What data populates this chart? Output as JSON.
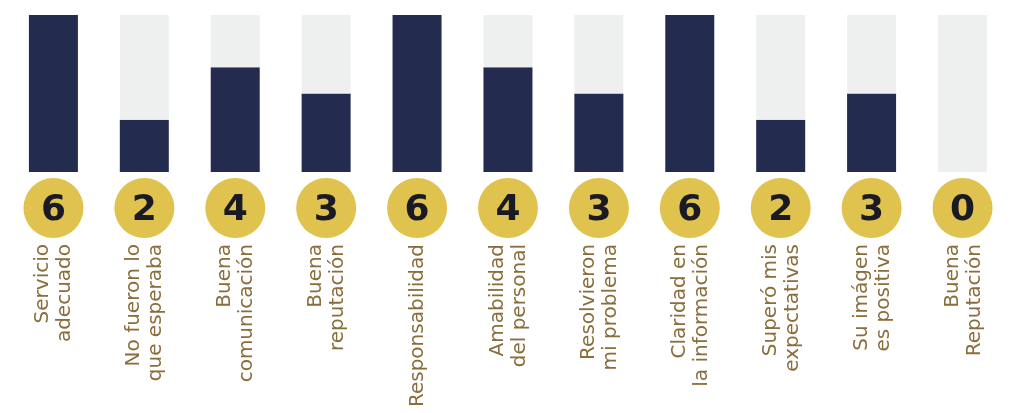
{
  "chart_data": {
    "type": "bar",
    "stacked": true,
    "categories": [
      "Servicio adecuado",
      "No fueron lo que esperaba",
      "Buena comunicación",
      "Buena reputación",
      "Responsabilidad",
      "Amabilidad del personal",
      "Resolvieron mi problema",
      "Claridad en la información",
      "Superó mis expectativas",
      "Su imágen es positiva",
      "Buena Reputación"
    ],
    "series": [
      {
        "color": "#232b4f",
        "values": [
          6,
          2,
          4,
          3,
          6,
          4,
          3,
          6,
          2,
          3,
          0
        ],
        "value_labels": [
          "6",
          "2",
          "4",
          "3",
          "6",
          "4",
          "3",
          "6",
          "2",
          "3",
          "0"
        ]
      },
      {
        "color": "#eef0ef",
        "values": [
          0,
          4,
          2,
          3,
          0,
          2,
          3,
          0,
          4,
          3,
          6
        ]
      }
    ],
    "ylim": [
      0,
      6
    ],
    "tick_labels": "x",
    "grid": false,
    "legend": false
  }
}
